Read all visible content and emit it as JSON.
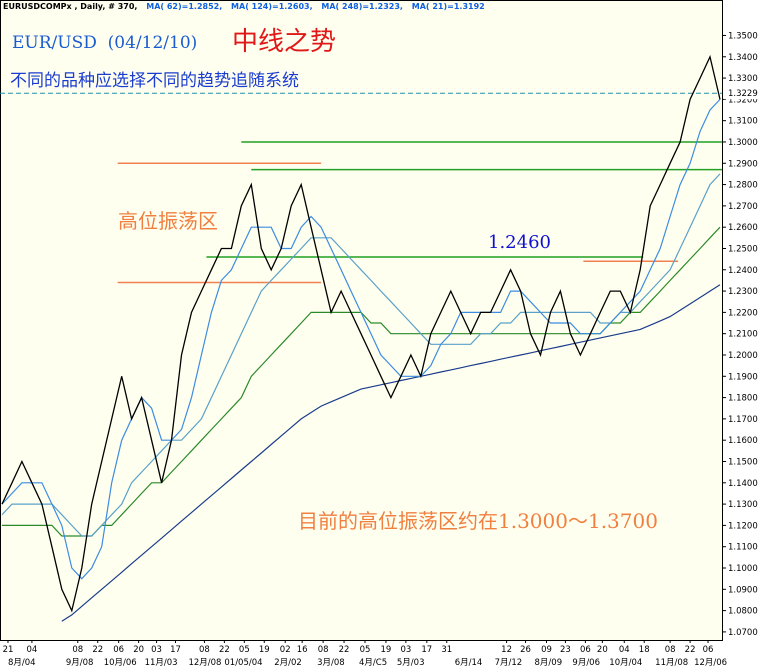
{
  "chart_data": {
    "type": "line",
    "header": [
      "EURUSDCOMPx , Daily, # 370,",
      "MA( 62)=1.2852,",
      "MA( 124)=1.2603,",
      "MA( 248)=1.2323,",
      "MA( 21)=1.3192"
    ],
    "title": "EUR/USD  (04/12/10)",
    "headline": "中线之势",
    "subtitle": "不同的品种应选择不同的趋势追随系统",
    "annotations": [
      {
        "text": "高位振荡区",
        "color": "#f08040"
      },
      {
        "text": "1.2460",
        "color": "#1010d0"
      },
      {
        "text": "目前的高位振荡区约在1.3000～1.3700",
        "color": "#f08040"
      }
    ],
    "last_price": {
      "value": 1.3229,
      "label": "1.3229"
    },
    "xlim": [
      -0.2,
      72.2
    ],
    "ylim": [
      1.0662,
      1.3643
    ],
    "series": [
      {
        "color": "#000000",
        "values": [
          1.13,
          1.14,
          1.15,
          1.14,
          1.13,
          1.11,
          1.09,
          1.08,
          1.1,
          1.13,
          1.15,
          1.17,
          1.19,
          1.17,
          1.18,
          1.16,
          1.14,
          1.16,
          1.2,
          1.22,
          1.23,
          1.24,
          1.25,
          1.25,
          1.27,
          1.28,
          1.25,
          1.24,
          1.25,
          1.27,
          1.28,
          1.26,
          1.24,
          1.22,
          1.23,
          1.22,
          1.21,
          1.2,
          1.19,
          1.18,
          1.19,
          1.2,
          1.19,
          1.21,
          1.22,
          1.23,
          1.22,
          1.21,
          1.22,
          1.22,
          1.23,
          1.24,
          1.23,
          1.21,
          1.2,
          1.22,
          1.23,
          1.21,
          1.2,
          1.21,
          1.22,
          1.23,
          1.23,
          1.22,
          1.24,
          1.27,
          1.28,
          1.29,
          1.3,
          1.32,
          1.33,
          1.34,
          1.32
        ]
      },
      {
        "color": "#3c8ce0",
        "values": [
          1.13,
          1.135,
          1.14,
          1.14,
          1.14,
          1.13,
          1.12,
          1.1,
          1.095,
          1.1,
          1.11,
          1.14,
          1.16,
          1.17,
          1.18,
          1.175,
          1.16,
          1.16,
          1.165,
          1.18,
          1.2,
          1.22,
          1.235,
          1.24,
          1.25,
          1.26,
          1.26,
          1.26,
          1.25,
          1.25,
          1.26,
          1.265,
          1.26,
          1.25,
          1.24,
          1.23,
          1.22,
          1.21,
          1.2,
          1.195,
          1.19,
          1.19,
          1.19,
          1.195,
          1.205,
          1.21,
          1.22,
          1.22,
          1.22,
          1.22,
          1.22,
          1.23,
          1.23,
          1.225,
          1.22,
          1.215,
          1.215,
          1.215,
          1.21,
          1.21,
          1.21,
          1.215,
          1.22,
          1.225,
          1.23,
          1.24,
          1.25,
          1.265,
          1.28,
          1.29,
          1.305,
          1.315,
          1.32
        ]
      },
      {
        "color": "#5aa0c8",
        "values": [
          1.125,
          1.13,
          1.13,
          1.13,
          1.13,
          1.13,
          1.125,
          1.12,
          1.115,
          1.115,
          1.12,
          1.125,
          1.13,
          1.14,
          1.145,
          1.15,
          1.155,
          1.16,
          1.16,
          1.165,
          1.17,
          1.18,
          1.19,
          1.2,
          1.21,
          1.22,
          1.23,
          1.235,
          1.24,
          1.245,
          1.25,
          1.255,
          1.255,
          1.255,
          1.25,
          1.245,
          1.24,
          1.235,
          1.23,
          1.225,
          1.22,
          1.215,
          1.21,
          1.205,
          1.205,
          1.205,
          1.205,
          1.205,
          1.21,
          1.21,
          1.215,
          1.215,
          1.22,
          1.22,
          1.22,
          1.22,
          1.22,
          1.22,
          1.22,
          1.22,
          1.215,
          1.215,
          1.22,
          1.22,
          1.225,
          1.23,
          1.235,
          1.24,
          1.25,
          1.26,
          1.27,
          1.28,
          1.285
        ]
      },
      {
        "color": "#2a8a2a",
        "values": [
          1.12,
          1.12,
          1.12,
          1.12,
          1.12,
          1.12,
          1.115,
          1.115,
          1.115,
          1.115,
          1.12,
          1.12,
          1.125,
          1.13,
          1.135,
          1.14,
          1.14,
          1.145,
          1.15,
          1.155,
          1.16,
          1.165,
          1.17,
          1.175,
          1.18,
          1.19,
          1.195,
          1.2,
          1.205,
          1.21,
          1.215,
          1.22,
          1.22,
          1.22,
          1.22,
          1.22,
          1.22,
          1.215,
          1.215,
          1.21,
          1.21,
          1.21,
          1.21,
          1.21,
          1.21,
          1.21,
          1.21,
          1.21,
          1.21,
          1.21,
          1.21,
          1.21,
          1.21,
          1.21,
          1.21,
          1.21,
          1.21,
          1.21,
          1.21,
          1.21,
          1.21,
          1.215,
          1.215,
          1.22,
          1.22,
          1.225,
          1.23,
          1.235,
          1.24,
          1.245,
          1.25,
          1.255,
          1.26
        ]
      },
      {
        "color": "#1a3c8c",
        "values": [
          null,
          null,
          null,
          null,
          null,
          null,
          1.075,
          1.078,
          1.082,
          1.086,
          1.09,
          1.094,
          1.098,
          1.102,
          1.106,
          1.11,
          1.114,
          1.118,
          1.122,
          1.126,
          1.13,
          1.134,
          1.138,
          1.142,
          1.146,
          1.15,
          1.154,
          1.158,
          1.162,
          1.166,
          1.17,
          1.173,
          1.176,
          1.178,
          1.18,
          1.182,
          1.184,
          1.185,
          1.186,
          1.187,
          1.188,
          1.189,
          1.19,
          1.191,
          1.192,
          1.193,
          1.194,
          1.195,
          1.196,
          1.197,
          1.198,
          1.199,
          1.2,
          1.201,
          1.202,
          1.203,
          1.204,
          1.205,
          1.206,
          1.207,
          1.208,
          1.209,
          1.21,
          1.211,
          1.212,
          1.214,
          1.216,
          1.218,
          1.221,
          1.224,
          1.227,
          1.23,
          1.233
        ]
      }
    ],
    "hlines": [
      {
        "value": 1.3,
        "from": 24,
        "to": 72.2,
        "color": "#22a022"
      },
      {
        "value": 1.287,
        "from": 25,
        "to": 72.2,
        "color": "#22a022"
      },
      {
        "value": 1.246,
        "from": 20.5,
        "to": 64.3,
        "color": "#22a022"
      },
      {
        "value": 1.29,
        "from": 11.6,
        "to": 32,
        "color": "#f08050"
      },
      {
        "value": 1.234,
        "from": 11.6,
        "to": 32,
        "color": "#f08050"
      },
      {
        "value": 1.244,
        "from": 58.3,
        "to": 67.8,
        "color": "#f08050"
      }
    ],
    "yticks": [
      {
        "value": 1.07,
        "label": "1.0700"
      },
      {
        "value": 1.08,
        "label": "1.0800"
      },
      {
        "value": 1.09,
        "label": "1.0900"
      },
      {
        "value": 1.1,
        "label": "1.1000"
      },
      {
        "value": 1.11,
        "label": "1.1100"
      },
      {
        "value": 1.12,
        "label": "1.1200"
      },
      {
        "value": 1.13,
        "label": "1.1300"
      },
      {
        "value": 1.14,
        "label": "1.1400"
      },
      {
        "value": 1.15,
        "label": "1.1500"
      },
      {
        "value": 1.16,
        "label": "1.1600"
      },
      {
        "value": 1.17,
        "label": "1.1700"
      },
      {
        "value": 1.18,
        "label": "1.1800"
      },
      {
        "value": 1.19,
        "label": "1.1900"
      },
      {
        "value": 1.2,
        "label": "1.2000"
      },
      {
        "value": 1.21,
        "label": "1.2100"
      },
      {
        "value": 1.22,
        "label": "1.2200"
      },
      {
        "value": 1.23,
        "label": "1.2300"
      },
      {
        "value": 1.24,
        "label": "1.2400"
      },
      {
        "value": 1.25,
        "label": "1.2500"
      },
      {
        "value": 1.26,
        "label": "1.2600"
      },
      {
        "value": 1.27,
        "label": "1.2700"
      },
      {
        "value": 1.28,
        "label": "1.2800"
      },
      {
        "value": 1.29,
        "label": "1.2900"
      },
      {
        "value": 1.3,
        "label": "1.3000"
      },
      {
        "value": 1.31,
        "label": "1.3100"
      },
      {
        "value": 1.32,
        "label": "1.3200"
      },
      {
        "value": 1.33,
        "label": "1.3300"
      },
      {
        "value": 1.34,
        "label": "1.3400"
      },
      {
        "value": 1.35,
        "label": "1.3500"
      }
    ],
    "xticks": [
      {
        "value": 0.6,
        "label": "21"
      },
      {
        "value": 3,
        "label": "04"
      },
      {
        "value": 7.6,
        "label": "08"
      },
      {
        "value": 9.6,
        "label": "22"
      },
      {
        "value": 11.7,
        "label": "06"
      },
      {
        "value": 13.7,
        "label": "20"
      },
      {
        "value": 15.5,
        "label": "03"
      },
      {
        "value": 17.4,
        "label": "17"
      },
      {
        "value": 20.3,
        "label": "08"
      },
      {
        "value": 22.3,
        "label": "22"
      },
      {
        "value": 24.3,
        "label": "05"
      },
      {
        "value": 26.3,
        "label": "19"
      },
      {
        "value": 28.4,
        "label": "02"
      },
      {
        "value": 30.1,
        "label": "16"
      },
      {
        "value": 32.2,
        "label": "08"
      },
      {
        "value": 34.3,
        "label": "22"
      },
      {
        "value": 36.4,
        "label": "05"
      },
      {
        "value": 38.5,
        "label": "19"
      },
      {
        "value": 40.5,
        "label": "03"
      },
      {
        "value": 42.6,
        "label": "17"
      },
      {
        "value": 44.6,
        "label": "31"
      },
      {
        "value": 50.6,
        "label": "12"
      },
      {
        "value": 52.5,
        "label": "26"
      },
      {
        "value": 54.6,
        "label": "09"
      },
      {
        "value": 56.5,
        "label": "23"
      },
      {
        "value": 58.5,
        "label": "06"
      },
      {
        "value": 60.2,
        "label": "20"
      },
      {
        "value": 62.4,
        "label": "04"
      },
      {
        "value": 64.4,
        "label": "18"
      },
      {
        "value": 67,
        "label": "08"
      },
      {
        "value": 69,
        "label": "22"
      },
      {
        "value": 70.8,
        "label": "06"
      }
    ],
    "xtick_months": [
      {
        "value": 0.6,
        "label": "8月/04"
      },
      {
        "value": 6.4,
        "label": "9月/08"
      },
      {
        "value": 10.2,
        "label": "10月/06"
      },
      {
        "value": 14.3,
        "label": "11月/03"
      },
      {
        "value": 18.7,
        "label": "12月/08"
      },
      {
        "value": 22.3,
        "label": "01/05/04"
      },
      {
        "value": 27.3,
        "label": "2月/02"
      },
      {
        "value": 31.6,
        "label": "3月/08"
      },
      {
        "value": 35.8,
        "label": "4月/C5"
      },
      {
        "value": 39.6,
        "label": "5月/03"
      },
      {
        "value": 45.4,
        "label": "6月/14"
      },
      {
        "value": 49.4,
        "label": "7月/12"
      },
      {
        "value": 53.4,
        "label": "8月/09"
      },
      {
        "value": 57.2,
        "label": "9月/06"
      },
      {
        "value": 60.9,
        "label": "10月/04"
      },
      {
        "value": 65.5,
        "label": "11月/08"
      },
      {
        "value": 69.4,
        "label": "12月/06"
      }
    ]
  }
}
